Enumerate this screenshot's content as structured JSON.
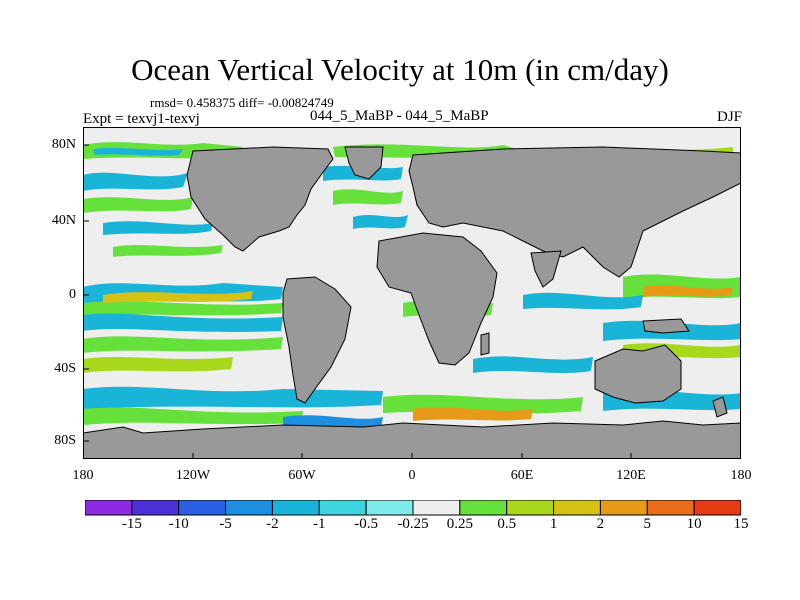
{
  "title": "Ocean Vertical Velocity at 10m (in cm/day)",
  "stats": {
    "rmsd_label": "rmsd= 0.458375 diff= -0.00824749"
  },
  "subtitle_left": "Expt = texvj1-texvj",
  "subtitle_center": "044_5_MaBP - 044_5_MaBP",
  "subtitle_right": "DJF",
  "y_axis": {
    "tick_labels": [
      "80N",
      "40N",
      "0",
      "40S",
      "80S"
    ]
  },
  "x_axis": {
    "tick_labels": [
      "180",
      "120W",
      "60W",
      "0",
      "60E",
      "120E",
      "180"
    ]
  },
  "colorbar": {
    "labels": [
      "-15",
      "-10",
      "-5",
      "-2",
      "-1",
      "-0.5",
      "-0.25",
      "0.25",
      "0.5",
      "1",
      "2",
      "5",
      "10",
      "15"
    ],
    "colors": [
      "#8c2be2",
      "#4a32d8",
      "#2a5fe6",
      "#1e8fe0",
      "#19b4d8",
      "#3fd4e0",
      "#7feaea",
      "#eeeeee",
      "#66e03a",
      "#a8d81c",
      "#d4c214",
      "#e79a18",
      "#e96c1a",
      "#e63a14"
    ]
  },
  "colors": {
    "land": "#999999",
    "near_zero": "#eeeeee",
    "outline": "#000000"
  }
}
